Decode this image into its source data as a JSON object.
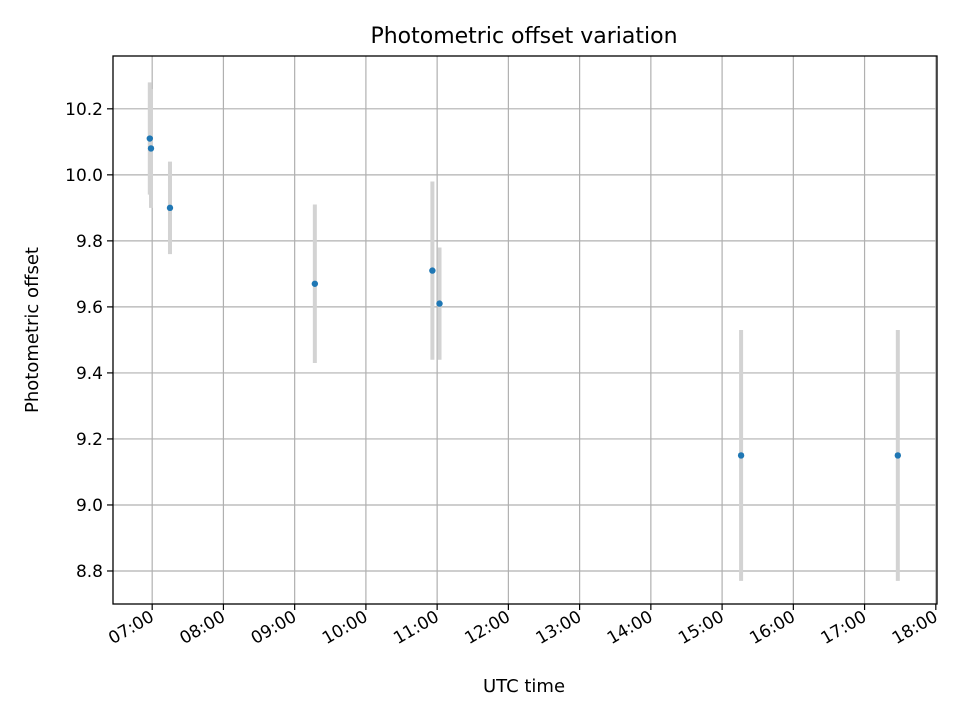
{
  "chart_data": {
    "type": "scatter",
    "title": "Photometric offset variation",
    "xlabel": "UTC time",
    "ylabel": "Photometric offset",
    "grid": true,
    "x_scale": "time",
    "xlim": [
      "06:27",
      "18:01"
    ],
    "ylim": [
      8.7,
      10.36
    ],
    "x_ticks": [
      "07:00",
      "08:00",
      "09:00",
      "10:00",
      "11:00",
      "12:00",
      "13:00",
      "14:00",
      "15:00",
      "16:00",
      "17:00",
      "18:00"
    ],
    "y_ticks": [
      8.8,
      9.0,
      9.2,
      9.4,
      9.6,
      9.8,
      10.0,
      10.2
    ],
    "y_tick_labels": [
      "8.8",
      "9.0",
      "9.2",
      "9.4",
      "9.6",
      "9.8",
      "10.0",
      "10.2"
    ],
    "marker_color": "#1f77b4",
    "errorbar_color": "#d3d3d3",
    "series": [
      {
        "points": [
          {
            "x": "06:58",
            "y": 10.11,
            "yerr": 0.17
          },
          {
            "x": "06:59",
            "y": 10.08,
            "yerr": 0.18
          },
          {
            "x": "07:15",
            "y": 9.9,
            "yerr": 0.14
          },
          {
            "x": "09:17",
            "y": 9.67,
            "yerr": 0.24
          },
          {
            "x": "10:56",
            "y": 9.71,
            "yerr": 0.27
          },
          {
            "x": "11:02",
            "y": 9.61,
            "yerr": 0.17
          },
          {
            "x": "15:16",
            "y": 9.15,
            "yerr": 0.38
          },
          {
            "x": "17:28",
            "y": 9.15,
            "yerr": 0.38
          }
        ]
      }
    ]
  }
}
